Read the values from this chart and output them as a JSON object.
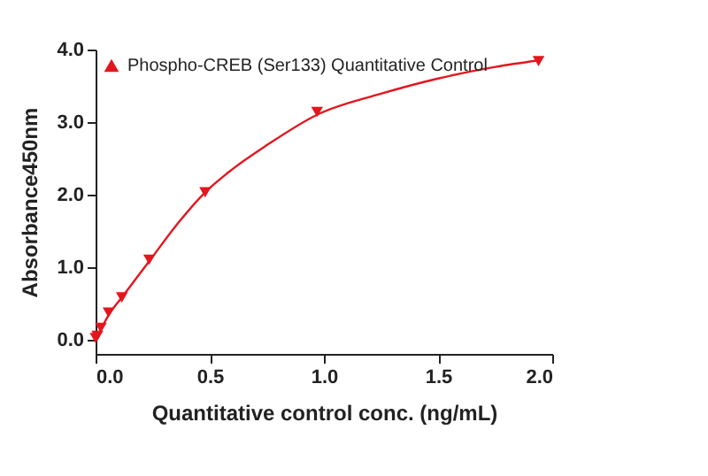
{
  "chart_data": {
    "type": "scatter",
    "xlabel": "Quantitative control conc. (ng/mL)",
    "ylabel": "Absorbance450nm",
    "xlim": [
      0,
      2.0
    ],
    "ylim": [
      -0.2,
      4.0
    ],
    "xticks": [
      {
        "value": 0,
        "label": "0.0"
      },
      {
        "value": 0.5,
        "label": "0.5"
      },
      {
        "value": 1,
        "label": "1.0"
      },
      {
        "value": 1.5,
        "label": "1.5"
      },
      {
        "value": 2,
        "label": "2.0"
      }
    ],
    "yticks": [
      {
        "value": 0,
        "label": "0.0"
      },
      {
        "value": 1,
        "label": "1.0"
      },
      {
        "value": 2,
        "label": "2.0"
      },
      {
        "value": 3,
        "label": "3.0"
      },
      {
        "value": 4,
        "label": "4.0"
      }
    ],
    "grid": false,
    "legend": "top left",
    "series": [
      {
        "name": "Phospho-CREB (Ser133) Quantitative Control",
        "color": "#e3161e",
        "marker": "triangle",
        "x": [
          0,
          0.008,
          0.023,
          0.057,
          0.115,
          0.235,
          0.48,
          0.97,
          1.94
        ],
        "values": [
          0.02,
          0.05,
          0.16,
          0.37,
          0.58,
          1.1,
          2.03,
          3.14,
          3.84
        ]
      },
      {
        "color": "#e3161e",
        "type": "line",
        "marker": "none",
        "line_style": "solid",
        "x": [
          0,
          0.03,
          0.06,
          0.12,
          0.24,
          0.36,
          0.48,
          0.6,
          0.75,
          0.97,
          1.25,
          1.5,
          1.75,
          1.94
        ],
        "values": [
          0,
          0.18,
          0.35,
          0.6,
          1.1,
          1.6,
          2.03,
          2.35,
          2.68,
          3.1,
          3.39,
          3.6,
          3.76,
          3.85
        ]
      }
    ]
  }
}
